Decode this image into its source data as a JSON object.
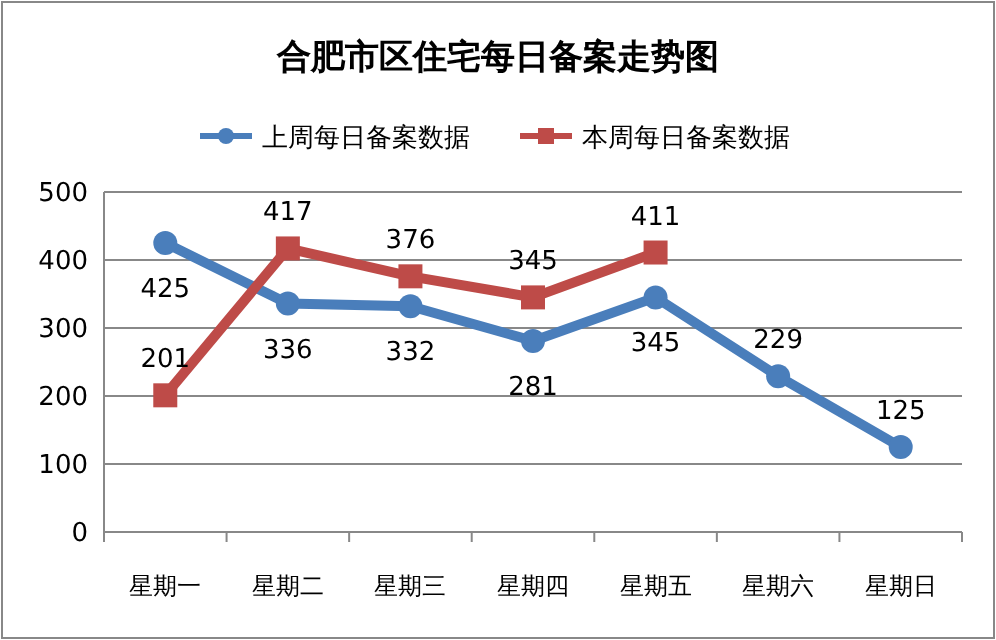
{
  "chart_data": {
    "type": "line",
    "title": "合肥市区住宅每日备案走势图",
    "categories": [
      "星期一",
      "星期二",
      "星期三",
      "星期四",
      "星期五",
      "星期六",
      "星期日"
    ],
    "series": [
      {
        "name": "上周每日备案数据",
        "color": "#4a7ebb",
        "marker": "circle",
        "values": [
          425,
          336,
          332,
          281,
          345,
          229,
          125
        ]
      },
      {
        "name": "本周每日备案数据",
        "color": "#be4b48",
        "marker": "square",
        "values": [
          201,
          417,
          376,
          345,
          411,
          null,
          null
        ]
      }
    ],
    "ylim": [
      0,
      500
    ],
    "yticks": [
      0,
      100,
      200,
      300,
      400,
      500
    ],
    "grid": "y",
    "legend": "top",
    "data_labels": true
  }
}
